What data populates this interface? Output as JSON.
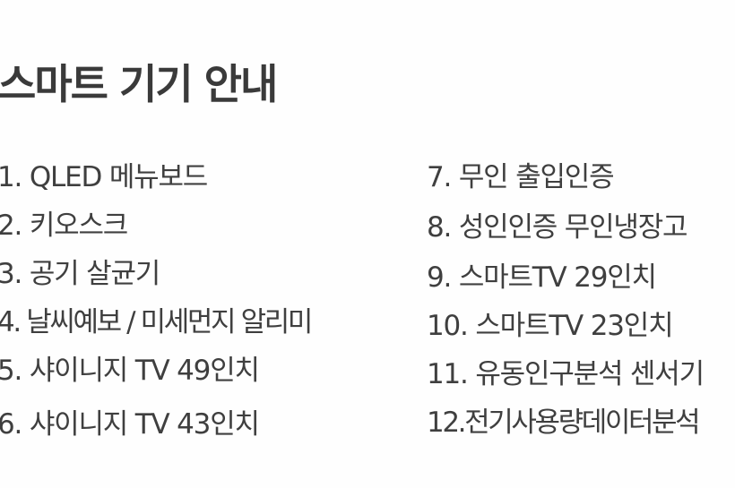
{
  "title": "스마트 기기 안내",
  "left_items": [
    "1.  QLED 메뉴보드",
    "2. 키오스크",
    "3. 공기 살균기",
    "4. 날씨예보 / 미세먼지 알리미",
    "5. 샤이니지 TV 49인치",
    "6. 샤이니지 TV 43인치"
  ],
  "right_items": [
    "7. 무인 출입인증",
    "8. 성인인증 무인냉장고",
    "9. 스마트TV 29인치",
    "10. 스마트TV 23인치",
    "11. 유동인구분석 센서기",
    "12.전기사용량데이터분석"
  ]
}
